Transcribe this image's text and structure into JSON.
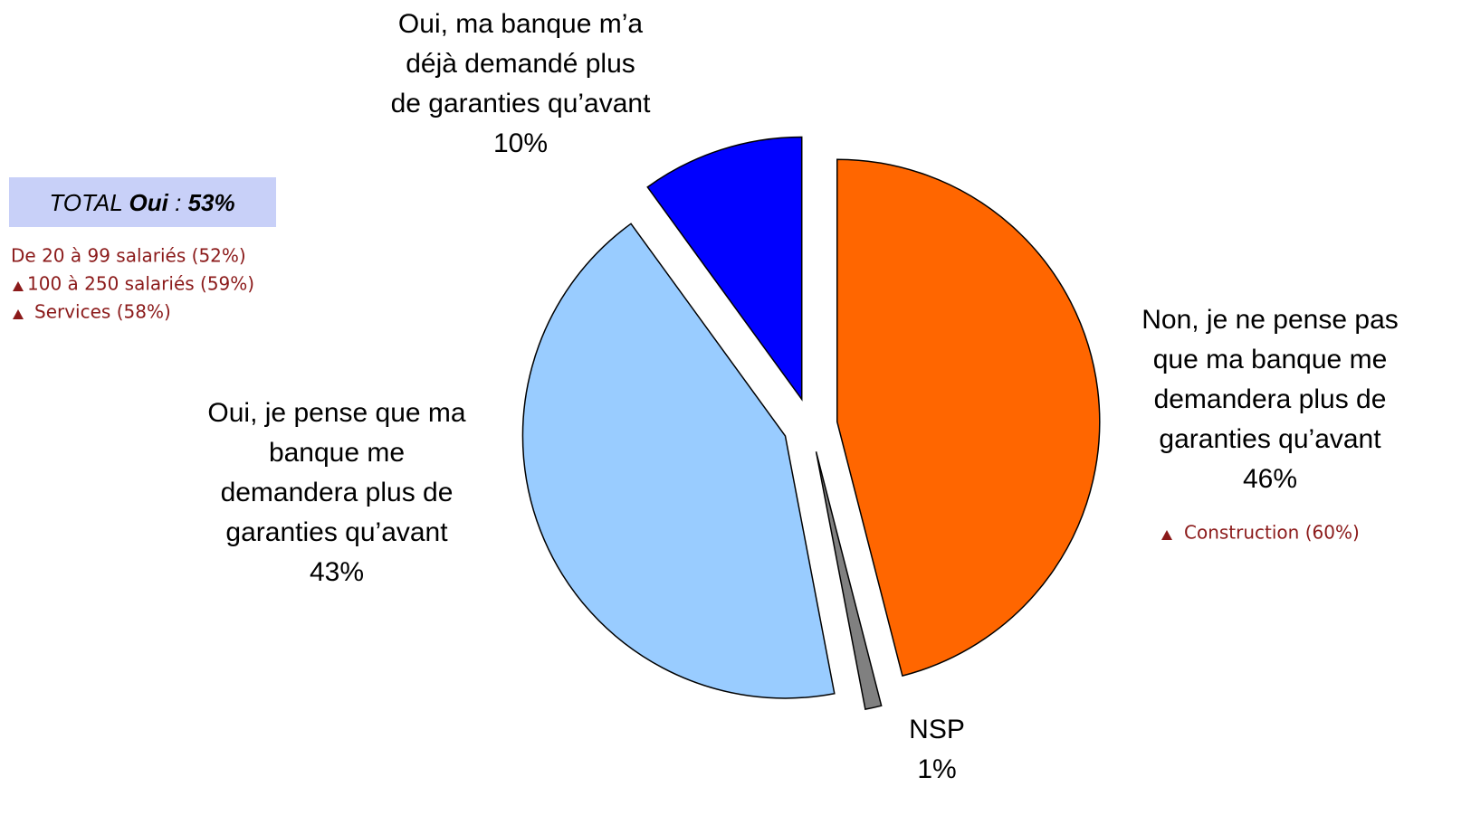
{
  "chart_data": {
    "type": "pie",
    "labels": [
      [
        "Non, je ne pense pas",
        "que ma banque me",
        "demandera plus de",
        "garanties qu’avant"
      ],
      [
        "NSP"
      ],
      [
        "Oui, je pense que ma",
        "banque me",
        "demandera plus de",
        "garanties qu’avant"
      ],
      [
        "Oui, ma banque m’a",
        "déjà demandé plus",
        "de garanties qu’avant"
      ]
    ],
    "values": [
      46,
      1,
      43,
      10
    ],
    "value_labels": [
      "46%",
      "1%",
      "43%",
      "10%"
    ],
    "colors": [
      "#ff6600",
      "#808080",
      "#99ccff",
      "#0000ff"
    ],
    "total": {
      "prefix": "TOTAL ",
      "word": "Oui",
      "sep": " : ",
      "value": "53%"
    },
    "notes_left": [
      "De 20 à 99 salariés (52%)",
      "100 à 250 salariés (59%)",
      "Services (58%)"
    ],
    "notes_right": [
      "Construction (60%)"
    ]
  }
}
